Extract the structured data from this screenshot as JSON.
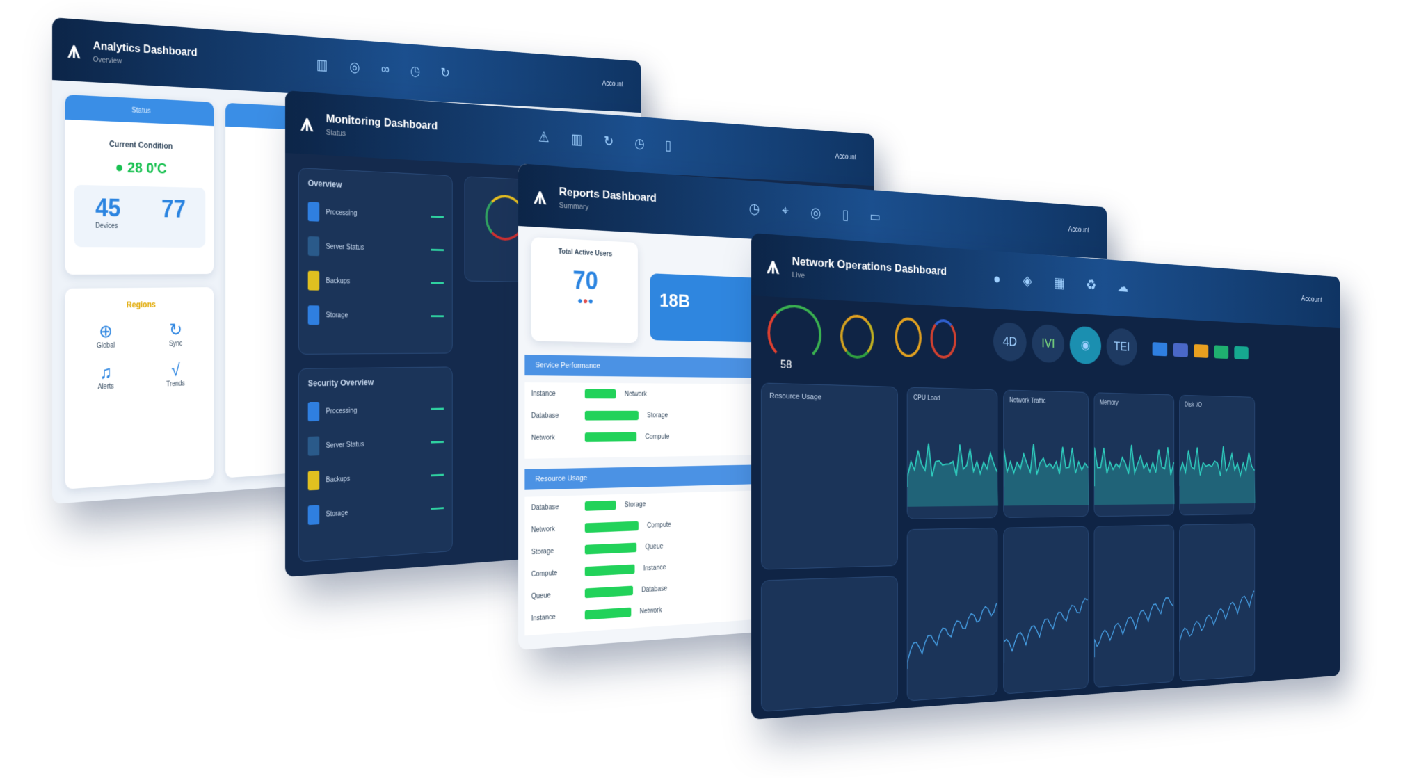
{
  "windows": [
    {
      "title": "Analytics Dashboard",
      "subtitle": "Overview",
      "user": "Account",
      "icons": [
        "bar-chart-icon",
        "signal-icon",
        "link-icon",
        "clock-icon",
        "refresh-icon"
      ]
    },
    {
      "title": "Monitoring Dashboard",
      "subtitle": "Status",
      "user": "Account",
      "icons": [
        "alert-icon",
        "bar-chart-icon",
        "refresh-icon",
        "clock-icon",
        "file-icon"
      ]
    },
    {
      "title": "Reports Dashboard",
      "subtitle": "Summary",
      "user": "Account",
      "icons": [
        "clock-icon",
        "pin-icon",
        "signal-icon",
        "file-icon",
        "folder-icon"
      ]
    },
    {
      "title": "Network Operations Dashboard",
      "subtitle": "Live",
      "user": "Account",
      "icons": [
        "circle-icon",
        "tag-icon",
        "grid-icon",
        "recycle-icon",
        "cloud-icon"
      ]
    }
  ],
  "w1": {
    "card_header": "Status",
    "card_title": "Current Condition",
    "temperature": "28 0'C",
    "stat_a": "45",
    "stat_b": "77",
    "stat_a_label": "Devices",
    "section": "Regions",
    "tiles": [
      "Global",
      "Sync",
      "Alerts",
      "Trends"
    ]
  },
  "w2": {
    "panel_a": "Overview",
    "panel_b": "Security Overview",
    "items": [
      "Processing",
      "Server Status",
      "Backups",
      "Storage"
    ]
  },
  "w3": {
    "card_title": "Total Active Users",
    "value": "70",
    "metric_value": "18B",
    "section_a": "Service Performance",
    "section_b": "Resource Usage",
    "rows": [
      "Instance",
      "Database",
      "Network",
      "Storage",
      "Compute",
      "Queue"
    ]
  },
  "w4": {
    "gauge_value": "58",
    "circle_labels": [
      "4D",
      "IVI",
      "",
      "TEI"
    ],
    "panels": [
      "Resource Usage",
      "CPU Load",
      "Network Traffic",
      "Memory",
      "Disk I/O"
    ],
    "colors": {
      "accent": "#2fd0c0",
      "green": "#22d25a",
      "alert": "#e0304a"
    },
    "button_colors": [
      "#2f7fe0",
      "#4a68c8",
      "#e8a020",
      "#1fb070",
      "#16a890"
    ]
  }
}
